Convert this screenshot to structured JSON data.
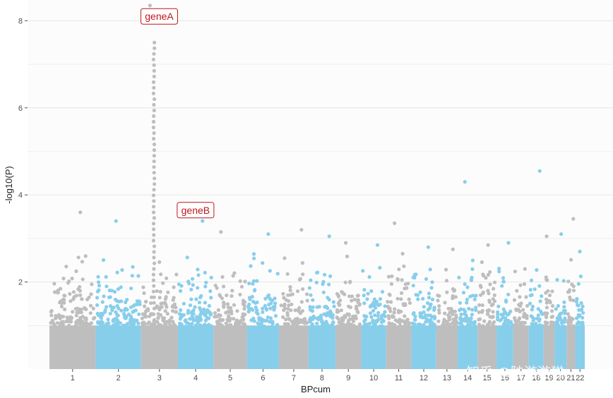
{
  "chart_data": {
    "type": "scatter",
    "title": "",
    "xlabel": "BPcum",
    "ylabel": "-log10(P)",
    "ylim": [
      0,
      8.3
    ],
    "y_ticks": [
      "2",
      "4",
      "6",
      "8"
    ],
    "grid": "horizontal",
    "legend": "none",
    "colors": [
      "#bebebe",
      "#87ceeb"
    ],
    "background": "#fcfcfc",
    "gridline_color": "#e6e6e6",
    "chromosomes": [
      {
        "label": "1",
        "start": 0,
        "end": 249,
        "peak": 3.6
      },
      {
        "label": "2",
        "start": 249,
        "end": 492,
        "peak": 3.4
      },
      {
        "label": "3",
        "start": 492,
        "end": 690,
        "peak": 8.35
      },
      {
        "label": "4",
        "start": 690,
        "end": 881,
        "peak": 3.4
      },
      {
        "label": "5",
        "start": 881,
        "end": 1062,
        "peak": 3.15
      },
      {
        "label": "6",
        "start": 1062,
        "end": 1233,
        "peak": 3.1
      },
      {
        "label": "7",
        "start": 1233,
        "end": 1392,
        "peak": 3.2
      },
      {
        "label": "8",
        "start": 1392,
        "end": 1537,
        "peak": 3.05
      },
      {
        "label": "9",
        "start": 1537,
        "end": 1675,
        "peak": 2.9
      },
      {
        "label": "10",
        "start": 1675,
        "end": 1809,
        "peak": 2.85
      },
      {
        "label": "11",
        "start": 1809,
        "end": 1944,
        "peak": 3.35
      },
      {
        "label": "12",
        "start": 1944,
        "end": 2078,
        "peak": 2.8
      },
      {
        "label": "13",
        "start": 2078,
        "end": 2193,
        "peak": 2.75
      },
      {
        "label": "14",
        "start": 2193,
        "end": 2300,
        "peak": 4.3
      },
      {
        "label": "15",
        "start": 2300,
        "end": 2402,
        "peak": 2.85
      },
      {
        "label": "16",
        "start": 2402,
        "end": 2492,
        "peak": 2.9
      },
      {
        "label": "17",
        "start": 2492,
        "end": 2575,
        "peak": 2.3
      },
      {
        "label": "18",
        "start": 2575,
        "end": 2655,
        "peak": 4.55
      },
      {
        "label": "19",
        "start": 2655,
        "end": 2714,
        "peak": 3.05
      },
      {
        "label": "20",
        "start": 2714,
        "end": 2778,
        "peak": 3.1
      },
      {
        "label": "21",
        "start": 2778,
        "end": 2825,
        "peak": 3.45
      },
      {
        "label": "22",
        "start": 2825,
        "end": 2876,
        "peak": 2.7
      }
    ],
    "annotations": [
      {
        "label": "geneA",
        "x": 590,
        "y": 8.1
      },
      {
        "label": "geneB",
        "x": 785,
        "y": 3.65
      }
    ],
    "highlight_color": "#c0141e"
  },
  "watermark": "知乎 @陆游游猫"
}
